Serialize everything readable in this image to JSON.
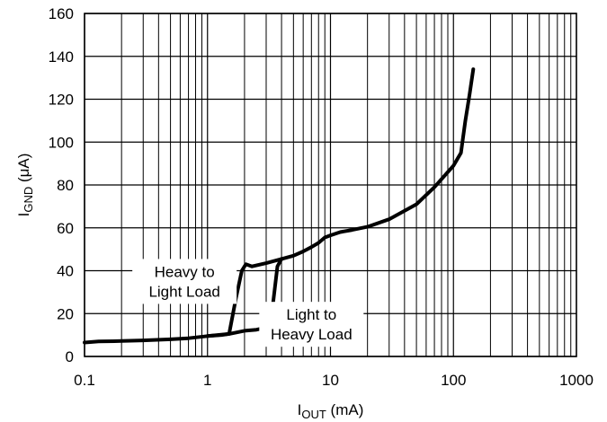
{
  "chart_data": {
    "type": "line",
    "xscale": "log",
    "xlim": [
      0.1,
      1000
    ],
    "ylim": [
      0,
      160
    ],
    "grid": true,
    "xticks": [
      "0.1",
      "1",
      "10",
      "100",
      "1000"
    ],
    "yticks": [
      "0",
      "20",
      "40",
      "60",
      "80",
      "100",
      "120",
      "140",
      "160"
    ],
    "xlabel": {
      "main": "I",
      "sub": "OUT",
      "unit": " (mA)"
    },
    "ylabel": {
      "main": "I",
      "sub": "GND",
      "unit": " (μA)"
    },
    "annotations": [
      {
        "lines": [
          "Heavy to",
          "Light Load"
        ],
        "at": [
          0.65,
          35
        ]
      },
      {
        "lines": [
          "Light to",
          "Heavy Load"
        ],
        "at": [
          7.0,
          15
        ]
      }
    ],
    "series": [
      {
        "points": [
          [
            0.1,
            6.5
          ],
          [
            0.13,
            7
          ],
          [
            0.2,
            7.2
          ],
          [
            0.3,
            7.5
          ],
          [
            0.5,
            8
          ],
          [
            0.7,
            8.5
          ],
          [
            1.0,
            9.5
          ],
          [
            1.3,
            10
          ],
          [
            1.5,
            10.5
          ],
          [
            1.7,
            27
          ],
          [
            1.9,
            40
          ],
          [
            2.05,
            43
          ],
          [
            2.3,
            42
          ],
          [
            3.0,
            43.5
          ],
          [
            4.0,
            45.5
          ],
          [
            5.0,
            47
          ],
          [
            6.0,
            49
          ],
          [
            7.0,
            51
          ],
          [
            8.0,
            53
          ],
          [
            9.0,
            55.5
          ],
          [
            10.0,
            56.5
          ],
          [
            12.0,
            58
          ],
          [
            15.0,
            59
          ],
          [
            20.0,
            60.5
          ],
          [
            30.0,
            64
          ],
          [
            50.0,
            71
          ],
          [
            70.0,
            79
          ],
          [
            100.0,
            89
          ],
          [
            115.0,
            95
          ],
          [
            125.0,
            110
          ],
          [
            135.0,
            122
          ],
          [
            145.0,
            134
          ]
        ]
      },
      {
        "points": [
          [
            1.0,
            9.5
          ],
          [
            1.5,
            10.5
          ],
          [
            2.0,
            12
          ],
          [
            2.5,
            12.5
          ],
          [
            3.0,
            13.5
          ],
          [
            3.4,
            24
          ],
          [
            3.7,
            42
          ],
          [
            4.0,
            45.5
          ]
        ]
      }
    ]
  }
}
